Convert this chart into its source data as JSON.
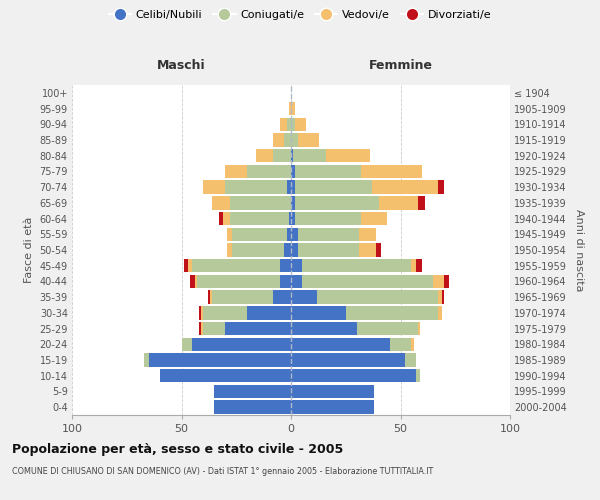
{
  "age_groups": [
    "0-4",
    "5-9",
    "10-14",
    "15-19",
    "20-24",
    "25-29",
    "30-34",
    "35-39",
    "40-44",
    "45-49",
    "50-54",
    "55-59",
    "60-64",
    "65-69",
    "70-74",
    "75-79",
    "80-84",
    "85-89",
    "90-94",
    "95-99",
    "100+"
  ],
  "birth_years": [
    "2000-2004",
    "1995-1999",
    "1990-1994",
    "1985-1989",
    "1980-1984",
    "1975-1979",
    "1970-1974",
    "1965-1969",
    "1960-1964",
    "1955-1959",
    "1950-1954",
    "1945-1949",
    "1940-1944",
    "1935-1939",
    "1930-1934",
    "1925-1929",
    "1920-1924",
    "1915-1919",
    "1910-1914",
    "1905-1909",
    "≤ 1904"
  ],
  "male_celibi": [
    35,
    35,
    60,
    65,
    45,
    30,
    20,
    8,
    5,
    5,
    3,
    2,
    1,
    0,
    2,
    0,
    0,
    0,
    0,
    0,
    0
  ],
  "male_coniugati": [
    0,
    0,
    0,
    2,
    5,
    10,
    20,
    28,
    38,
    40,
    24,
    25,
    27,
    28,
    28,
    20,
    8,
    3,
    2,
    0,
    0
  ],
  "male_vedovi": [
    0,
    0,
    0,
    0,
    0,
    1,
    1,
    1,
    1,
    2,
    2,
    2,
    3,
    8,
    10,
    10,
    8,
    5,
    3,
    1,
    0
  ],
  "male_divorziati": [
    0,
    0,
    0,
    0,
    0,
    1,
    1,
    1,
    2,
    2,
    0,
    0,
    2,
    0,
    0,
    0,
    0,
    0,
    0,
    0,
    0
  ],
  "female_celibi": [
    38,
    38,
    57,
    52,
    45,
    30,
    25,
    12,
    5,
    5,
    3,
    3,
    2,
    2,
    2,
    2,
    1,
    0,
    0,
    0,
    0
  ],
  "female_coniugati": [
    0,
    0,
    2,
    5,
    10,
    28,
    42,
    55,
    60,
    50,
    28,
    28,
    30,
    38,
    35,
    30,
    15,
    3,
    2,
    0,
    0
  ],
  "female_vedovi": [
    0,
    0,
    0,
    0,
    1,
    1,
    2,
    2,
    5,
    2,
    8,
    8,
    12,
    18,
    30,
    28,
    20,
    10,
    5,
    2,
    0
  ],
  "female_divorziati": [
    0,
    0,
    0,
    0,
    0,
    0,
    0,
    1,
    2,
    3,
    2,
    0,
    0,
    3,
    3,
    0,
    0,
    0,
    0,
    0,
    0
  ],
  "color_celibi": "#4472c4",
  "color_coniugati": "#b5c99a",
  "color_vedovi": "#f5c06e",
  "color_divorziati": "#c0111a",
  "title": "Popolazione per età, sesso e stato civile - 2005",
  "subtitle": "COMUNE DI CHIUSANO DI SAN DOMENICO (AV) - Dati ISTAT 1° gennaio 2005 - Elaborazione TUTTITALIA.IT",
  "label_maschi": "Maschi",
  "label_femmine": "Femmine",
  "ylabel_left": "Fasce di età",
  "ylabel_right": "Anni di nascita",
  "xlim": 100,
  "background_color": "#f0f0f0",
  "plot_bg_color": "#ffffff"
}
